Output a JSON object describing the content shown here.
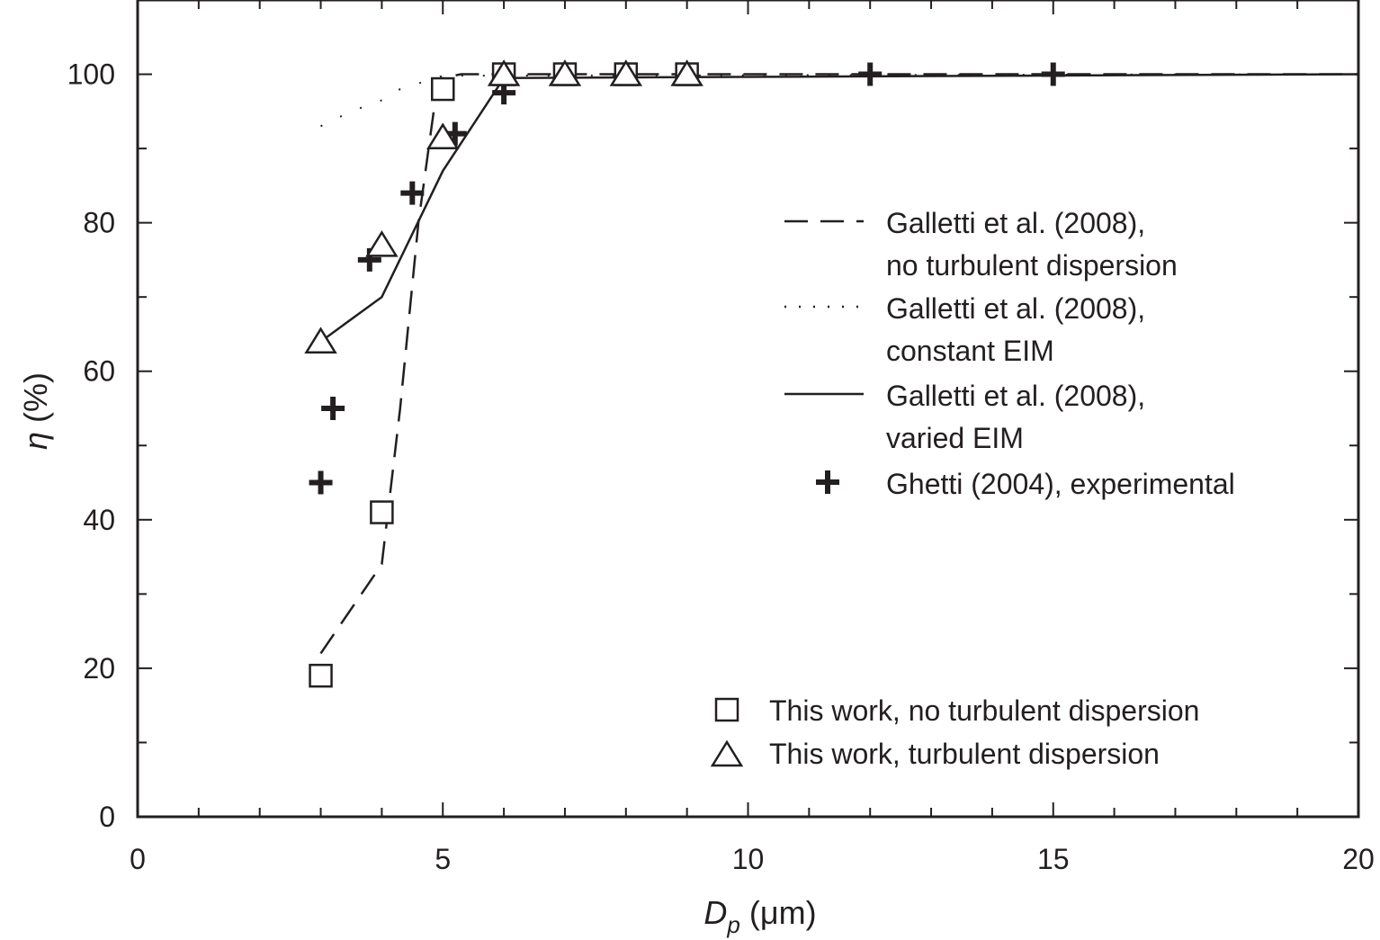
{
  "chart_data": {
    "type": "line",
    "title": "",
    "xlabel_main": "D",
    "xlabel_sub": "p",
    "xlabel_units": " (μm)",
    "ylabel_main": "η",
    "ylabel_units": " (%)",
    "xlim": [
      0,
      20
    ],
    "ylim": [
      0,
      110
    ],
    "xticks": [
      0,
      5,
      10,
      15,
      20
    ],
    "yticks": [
      0,
      20,
      40,
      60,
      80,
      100
    ],
    "grid": false,
    "series": [
      {
        "name": "Galletti et al. (2008), no turbulent dispersion",
        "style": "dashed",
        "x": [
          3,
          4,
          4.3,
          4.6,
          4.85,
          5,
          5.3,
          6,
          20
        ],
        "y": [
          22,
          34,
          55,
          80,
          95,
          99.5,
          100,
          100,
          100
        ]
      },
      {
        "name": "Galletti et al. (2008), constant EIM",
        "style": "dotted",
        "x": [
          3,
          3.5,
          4,
          4.3,
          5,
          20
        ],
        "y": [
          93,
          95,
          96.5,
          98,
          99.8,
          100
        ]
      },
      {
        "name": "Galletti et al. (2008), varied EIM",
        "style": "solid",
        "x": [
          3,
          4,
          5,
          6,
          20
        ],
        "y": [
          64,
          70,
          87,
          99.5,
          100
        ]
      },
      {
        "name": "Ghetti (2004), experimental",
        "style": "marker-plus",
        "x": [
          3,
          3.2,
          3.8,
          4.5,
          5.2,
          6,
          12,
          15
        ],
        "y": [
          45,
          55,
          75,
          84,
          92,
          97.5,
          100,
          100
        ]
      },
      {
        "name": "This work, no turbulent dispersion",
        "style": "marker-square",
        "x": [
          3,
          4,
          5,
          6,
          7,
          8,
          9
        ],
        "y": [
          19,
          41,
          98,
          100,
          100,
          100,
          100
        ]
      },
      {
        "name": "This work, turbulent dispersion",
        "style": "marker-triangle",
        "x": [
          3,
          4,
          5,
          6,
          7,
          8,
          9
        ],
        "y": [
          64,
          77,
          91.5,
          100,
          100,
          100,
          100
        ]
      }
    ],
    "legend_upper": [
      {
        "lines": [
          "Galletti et al. (2008),",
          "no turbulent dispersion"
        ],
        "style": "dashed"
      },
      {
        "lines": [
          "Galletti et al. (2008),",
          "constant EIM"
        ],
        "style": "dotted"
      },
      {
        "lines": [
          "Galletti et al. (2008),",
          "varied EIM"
        ],
        "style": "solid"
      },
      {
        "lines": [
          "Ghetti (2004), experimental"
        ],
        "style": "marker-plus"
      }
    ],
    "legend_lower": [
      {
        "lines": [
          "This work, no turbulent dispersion"
        ],
        "style": "marker-square"
      },
      {
        "lines": [
          "This work, turbulent dispersion"
        ],
        "style": "marker-triangle"
      }
    ],
    "ink_color": "#231f20"
  }
}
